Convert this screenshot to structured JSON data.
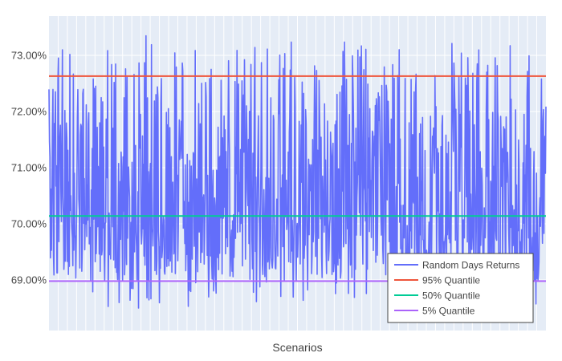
{
  "chart_data": {
    "type": "line",
    "title": "",
    "xlabel": "Scenarios",
    "ylabel": "",
    "n_points": 1000,
    "xlim": [
      0,
      999
    ],
    "ylim": [
      68.1,
      73.7
    ],
    "y_ticks": [
      69.0,
      70.0,
      71.0,
      72.0,
      73.0
    ],
    "y_tick_labels": [
      "69.00%",
      "70.00%",
      "71.00%",
      "72.00%",
      "73.00%"
    ],
    "x_tick_labels_visible": false,
    "grid": true,
    "legend_position": "bottom-right",
    "series": [
      {
        "name": "Random Days Returns",
        "color": "#636efa",
        "kind": "line",
        "approximate_stats": {
          "min": 68.5,
          "max": 73.35,
          "median": 70.14,
          "q05": 68.98,
          "q95": 72.63
        }
      },
      {
        "name": "95% Quantile",
        "color": "#ef553b",
        "kind": "hline",
        "value": 72.63
      },
      {
        "name": "50% Quantile",
        "color": "#00cc96",
        "kind": "hline",
        "value": 70.14
      },
      {
        "name": "5% Quantile",
        "color": "#ab63fa",
        "kind": "hline",
        "value": 68.98
      }
    ],
    "colors": {
      "plot_bg": "#e5ecf6",
      "grid": "#ffffff",
      "text": "#444444"
    }
  }
}
